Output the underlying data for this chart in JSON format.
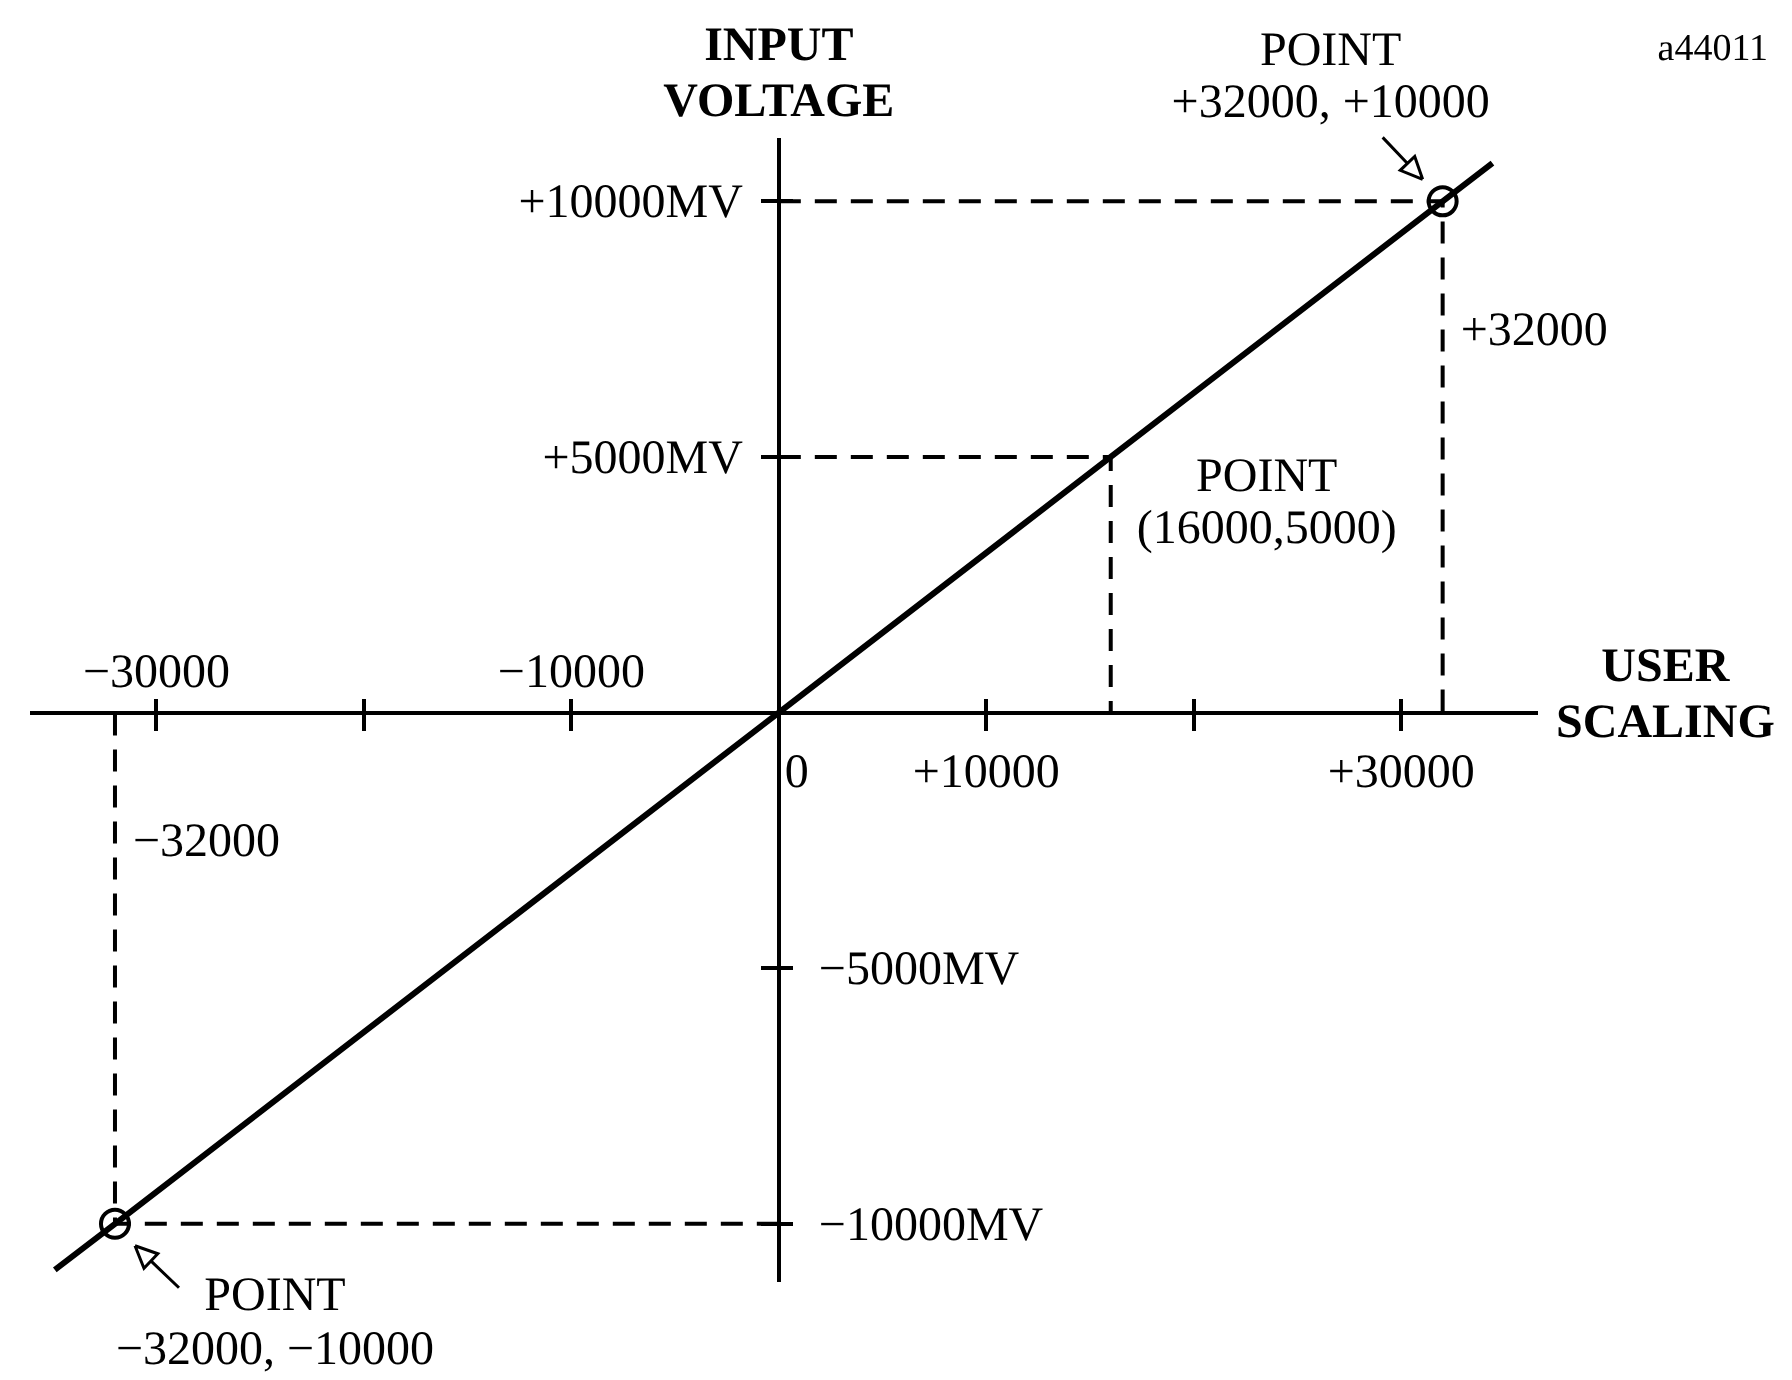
{
  "chart_data": {
    "type": "line",
    "xlabel": "USER SCALING",
    "ylabel": "INPUT VOLTAGE",
    "xlim": [
      -36000,
      36500
    ],
    "ylim": [
      -11100,
      11200
    ],
    "xticks": [
      {
        "value": -30000,
        "label": null
      },
      {
        "value": -20000,
        "label": null
      },
      {
        "value": -10000,
        "label": null
      },
      0,
      {
        "value": 10000,
        "label": "+10000"
      },
      {
        "value": 20000,
        "label": null
      },
      {
        "value": 30000,
        "label": "+30000"
      }
    ],
    "x2lim": [
      -36000,
      36500
    ],
    "x2ticks": [
      {
        "value": -30000,
        "label": "−30000"
      },
      {
        "value": -20000,
        "label": null
      },
      {
        "value": -10000,
        "label": "−10000"
      },
      {
        "value": 10000,
        "label": null
      },
      {
        "value": 20000,
        "label": null
      },
      {
        "value": 30000,
        "label": null
      }
    ],
    "yticks": [
      {
        "value": -10000,
        "label": null
      },
      {
        "value": -5000,
        "label": null
      },
      {
        "value": 5000,
        "label": "+5000MV"
      },
      {
        "value": 10000,
        "label": "+10000MV"
      }
    ],
    "y2lim": [
      -11100,
      11200
    ],
    "y2ticks": [
      {
        "value": -10000,
        "label": "−10000MV"
      },
      {
        "value": -5000,
        "label": "−5000MV"
      },
      {
        "value": 5000,
        "label": null
      },
      {
        "value": 10000,
        "label": null
      }
    ],
    "series": [
      {
        "type": "line",
        "color": "#000000",
        "x": [
          -34900,
          -32000,
          0,
          16000,
          32000,
          34400
        ],
        "values": [
          -10900,
          -10000,
          0,
          5000,
          10000,
          10750
        ],
        "line_style": "solid",
        "marker": "none"
      },
      {
        "type": "scatter",
        "color": "#000000",
        "x": [
          -32000,
          32000
        ],
        "values": [
          -10000,
          10000
        ],
        "marker": "circle"
      },
      {
        "type": "line",
        "color": "#000000",
        "x": [
          0,
          32000,
          32000
        ],
        "values": [
          10000,
          10000,
          0
        ],
        "line_style": "dashed",
        "marker": "none"
      },
      {
        "type": "line",
        "color": "#000000",
        "x": [
          0,
          16000,
          16000
        ],
        "values": [
          5000,
          5000,
          0
        ],
        "line_style": "dashed",
        "marker": "none"
      },
      {
        "type": "line",
        "color": "#000000",
        "x": [
          0,
          -32000,
          -32000
        ],
        "values": [
          -10000,
          -10000,
          0
        ],
        "line_style": "dashed",
        "marker": "none"
      }
    ],
    "annotations": [
      {
        "text": "POINT\n+32000, +10000",
        "x": 32000,
        "y": 10000
      },
      {
        "text": "POINT\n(16000,5000)",
        "x": 16000,
        "y": 5000
      },
      {
        "text": "POINT\n−32000, −10000",
        "x": -32000,
        "y": -10000
      },
      {
        "text": "+32000",
        "x": 32000,
        "y": 7500
      },
      {
        "text": "−32000",
        "x": -32000,
        "y": -2500
      },
      "a44011"
    ]
  }
}
